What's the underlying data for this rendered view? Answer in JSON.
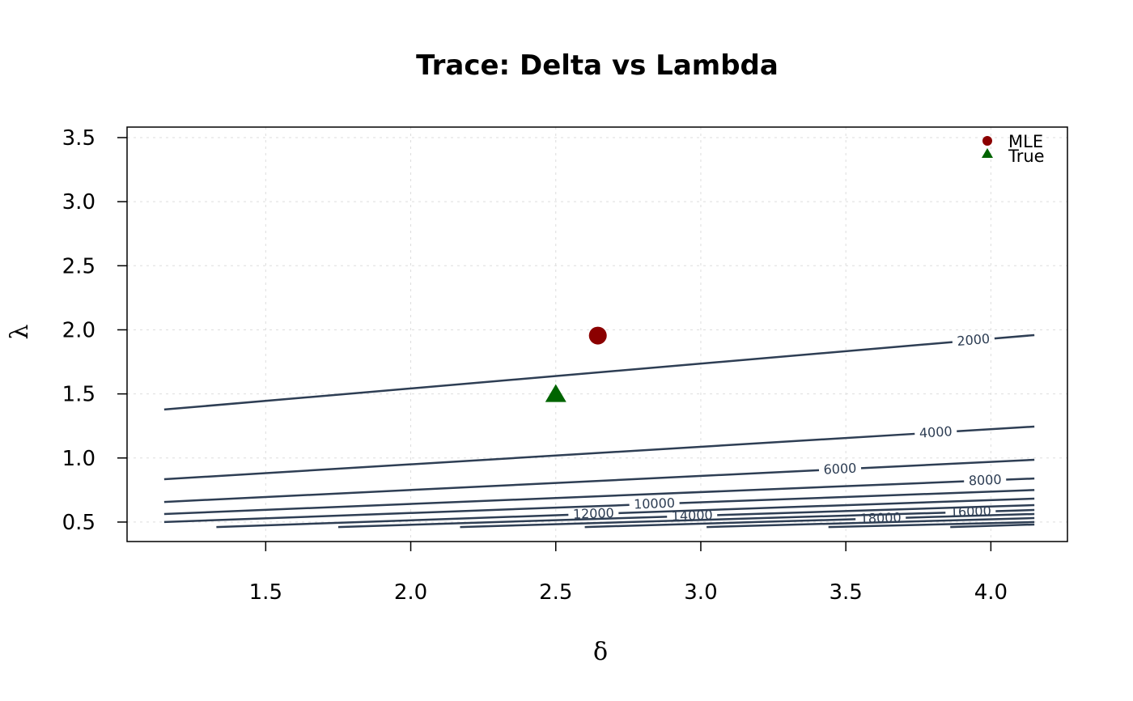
{
  "chart_data": {
    "type": "contour",
    "title": "Trace: Delta vs Lambda",
    "xlabel": "δ",
    "ylabel": "λ",
    "xlim": [
      1.022,
      4.264
    ],
    "ylim": [
      0.348,
      3.582
    ],
    "xticks": [
      1.5,
      2.0,
      2.5,
      3.0,
      3.5,
      4.0
    ],
    "yticks": [
      0.5,
      1.0,
      1.5,
      2.0,
      2.5,
      3.0,
      3.5
    ],
    "xtick_labels": [
      "1.5",
      "2.0",
      "2.5",
      "3.0",
      "3.5",
      "4.0"
    ],
    "ytick_labels": [
      "0.5",
      "1.0",
      "1.5",
      "2.0",
      "2.5",
      "3.0",
      "3.5"
    ],
    "grid": true,
    "line_color": "#2e3e54",
    "contours": [
      {
        "level": "2000",
        "points": [
          [
            1.15,
            1.378
          ],
          [
            4.15,
            1.959
          ]
        ],
        "label_x": 3.94
      },
      {
        "level": "4000",
        "points": [
          [
            1.15,
            0.834
          ],
          [
            4.15,
            1.245
          ]
        ],
        "label_x": 3.81
      },
      {
        "level": "6000",
        "points": [
          [
            1.15,
            0.657
          ],
          [
            4.15,
            0.986
          ]
        ],
        "label_x": 3.48
      },
      {
        "level": "8000",
        "points": [
          [
            1.15,
            0.563
          ],
          [
            4.15,
            0.84
          ]
        ],
        "label_x": 3.98
      },
      {
        "level": "10000",
        "points": [
          [
            1.15,
            0.5
          ],
          [
            4.15,
            0.75
          ]
        ],
        "label_x": 2.84
      },
      {
        "level": "12000",
        "points": [
          [
            1.33,
            0.461
          ],
          [
            4.15,
            0.683
          ]
        ],
        "label_x": 2.63
      },
      {
        "level": "14000",
        "points": [
          [
            1.75,
            0.461
          ],
          [
            4.15,
            0.632
          ]
        ],
        "label_x": 2.97
      },
      {
        "level": "16000",
        "points": [
          [
            2.17,
            0.461
          ],
          [
            4.15,
            0.594
          ]
        ],
        "label_x": 3.93
      },
      {
        "level": "18000",
        "points": [
          [
            2.6,
            0.461
          ],
          [
            4.15,
            0.563
          ]
        ],
        "label_x": 3.62
      },
      {
        "level": "",
        "points": [
          [
            3.02,
            0.461
          ],
          [
            4.15,
            0.531
          ]
        ]
      },
      {
        "level": "",
        "points": [
          [
            3.44,
            0.461
          ],
          [
            4.15,
            0.5
          ]
        ]
      },
      {
        "level": "",
        "points": [
          [
            3.86,
            0.461
          ],
          [
            4.15,
            0.481
          ]
        ]
      }
    ],
    "points": [
      {
        "name": "MLE",
        "x": 2.645,
        "y": 1.955,
        "shape": "circle",
        "color": "#8b0000"
      },
      {
        "name": "True",
        "x": 2.5,
        "y": 1.5,
        "shape": "triangle",
        "color": "#006400"
      }
    ],
    "legend": {
      "position": "top-right",
      "entries": [
        "MLE",
        "True"
      ]
    }
  }
}
